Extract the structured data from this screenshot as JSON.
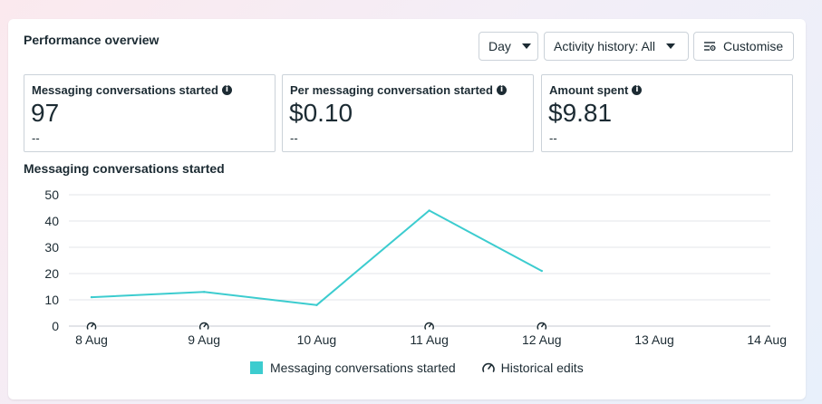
{
  "panel": {
    "title": "Performance overview",
    "day_label": "Day",
    "activity_label": "Activity history: All",
    "customise_label": "Customise"
  },
  "metrics": [
    {
      "label": "Messaging conversations started",
      "value": "97",
      "delta": "--"
    },
    {
      "label": "Per messaging conversation started",
      "value": "$0.10",
      "delta": "--"
    },
    {
      "label": "Amount spent",
      "value": "$9.81",
      "delta": "--"
    }
  ],
  "chart_title": "Messaging conversations started",
  "legend": {
    "series_label": "Messaging conversations started",
    "edits_label": "Historical edits"
  },
  "colors": {
    "series": "#3ccccf",
    "grid": "#e3e6ea",
    "text": "#1c2b33"
  },
  "chart_data": {
    "type": "line",
    "categories": [
      "8 Aug",
      "9 Aug",
      "10 Aug",
      "11 Aug",
      "12 Aug",
      "13 Aug",
      "14 Aug"
    ],
    "series": [
      {
        "name": "Messaging conversations started",
        "values": [
          11,
          13,
          8,
          44,
          21,
          null,
          null
        ]
      }
    ],
    "yticks": [
      0,
      10,
      20,
      30,
      40,
      50
    ],
    "ylim": [
      0,
      50
    ],
    "historical_edit_markers": [
      "8 Aug",
      "9 Aug",
      "11 Aug",
      "12 Aug"
    ],
    "grid": true,
    "legend_position": "bottom"
  }
}
